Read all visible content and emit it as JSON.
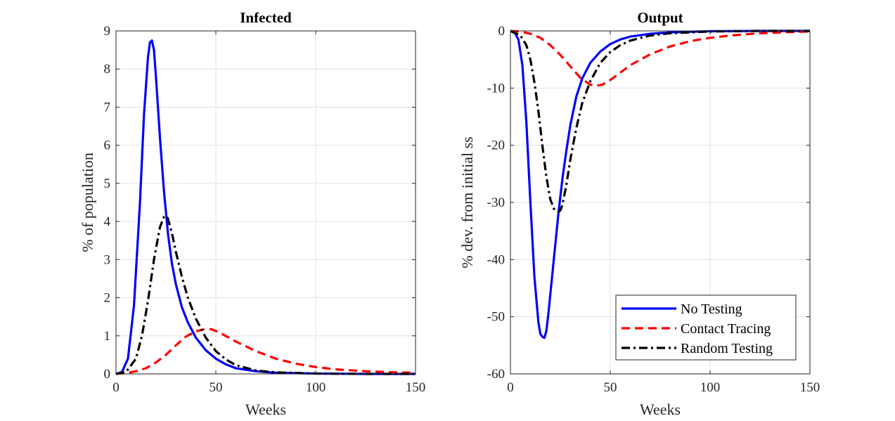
{
  "chart_data": [
    {
      "type": "line",
      "title": "Infected",
      "xlabel": "Weeks",
      "ylabel": "% of population",
      "xlim": [
        0,
        150
      ],
      "ylim": [
        0,
        9
      ],
      "xticks": [
        0,
        50,
        100,
        150
      ],
      "yticks": [
        0,
        1,
        2,
        3,
        4,
        5,
        6,
        7,
        8,
        9
      ],
      "grid": true,
      "series": [
        {
          "name": "No Testing",
          "color": "#0000ff",
          "style": "solid",
          "x": [
            0,
            3,
            6,
            9,
            12,
            14,
            16,
            17,
            18,
            19,
            20,
            22,
            24,
            26,
            28,
            30,
            33,
            36,
            40,
            45,
            50,
            55,
            60,
            70,
            80,
            100,
            125,
            150
          ],
          "y": [
            0,
            0.05,
            0.4,
            1.8,
            4.5,
            6.8,
            8.3,
            8.7,
            8.75,
            8.5,
            7.8,
            6.2,
            4.8,
            3.7,
            2.9,
            2.35,
            1.75,
            1.35,
            0.95,
            0.62,
            0.4,
            0.25,
            0.15,
            0.07,
            0.03,
            0.01,
            0,
            0
          ]
        },
        {
          "name": "Contact Tracing",
          "color": "#ff0000",
          "style": "dashed",
          "x": [
            0,
            5,
            10,
            15,
            20,
            25,
            30,
            35,
            40,
            45,
            48,
            52,
            60,
            70,
            80,
            90,
            100,
            110,
            125,
            140,
            150
          ],
          "y": [
            0,
            0.02,
            0.07,
            0.15,
            0.3,
            0.5,
            0.75,
            0.98,
            1.12,
            1.18,
            1.17,
            1.08,
            0.85,
            0.6,
            0.4,
            0.27,
            0.18,
            0.12,
            0.07,
            0.04,
            0.03
          ]
        },
        {
          "name": "Random Testing",
          "color": "#000000",
          "style": "dashdot",
          "x": [
            0,
            5,
            10,
            13,
            16,
            19,
            22,
            24,
            25,
            26,
            28,
            30,
            33,
            36,
            40,
            45,
            50,
            55,
            60,
            70,
            80,
            100,
            125,
            150
          ],
          "y": [
            0,
            0.05,
            0.4,
            1.0,
            1.9,
            3.0,
            3.85,
            4.12,
            4.15,
            4.08,
            3.7,
            3.2,
            2.55,
            2.0,
            1.45,
            0.95,
            0.6,
            0.38,
            0.23,
            0.09,
            0.04,
            0.01,
            0,
            0
          ]
        }
      ]
    },
    {
      "type": "line",
      "title": "Output",
      "xlabel": "Weeks",
      "ylabel": "% dev. from initial ss",
      "xlim": [
        0,
        150
      ],
      "ylim": [
        -60,
        0
      ],
      "xticks": [
        0,
        50,
        100,
        150
      ],
      "yticks": [
        0,
        -10,
        -20,
        -30,
        -40,
        -50,
        -60
      ],
      "grid": true,
      "legend": {
        "placement": "bottom-right",
        "entries": [
          "No Testing",
          "Contact Tracing",
          "Random Testing"
        ]
      },
      "series": [
        {
          "name": "No Testing",
          "color": "#0000ff",
          "style": "solid",
          "x": [
            0,
            2,
            4,
            6,
            8,
            10,
            12,
            14,
            15,
            16,
            17,
            18,
            19,
            20,
            22,
            24,
            26,
            28,
            30,
            33,
            36,
            40,
            45,
            50,
            55,
            60,
            70,
            80,
            100,
            125,
            150
          ],
          "y": [
            0,
            -0.2,
            -1.5,
            -6,
            -16,
            -30,
            -43,
            -51,
            -53,
            -53.5,
            -53.7,
            -52.5,
            -49.5,
            -46,
            -39,
            -32,
            -26,
            -21,
            -16.5,
            -11.5,
            -8.3,
            -5.6,
            -3.6,
            -2.3,
            -1.5,
            -1,
            -0.5,
            -0.25,
            -0.05,
            0,
            0
          ]
        },
        {
          "name": "Contact Tracing",
          "color": "#ff0000",
          "style": "dashed",
          "x": [
            0,
            5,
            10,
            15,
            20,
            25,
            30,
            35,
            40,
            43,
            46,
            50,
            55,
            60,
            70,
            80,
            90,
            100,
            110,
            125,
            140,
            150
          ],
          "y": [
            0,
            -0.1,
            -0.5,
            -1.2,
            -2.5,
            -4.2,
            -6.2,
            -8.2,
            -9.4,
            -9.6,
            -9.4,
            -8.6,
            -7.3,
            -6,
            -4.1,
            -2.7,
            -1.8,
            -1.2,
            -0.8,
            -0.4,
            -0.2,
            -0.1
          ]
        },
        {
          "name": "Random Testing",
          "color": "#000000",
          "style": "dashdot",
          "x": [
            0,
            5,
            8,
            10,
            12,
            14,
            16,
            18,
            20,
            22,
            24,
            25,
            26,
            28,
            30,
            33,
            36,
            40,
            45,
            50,
            55,
            60,
            70,
            80,
            100,
            125,
            150
          ],
          "y": [
            0,
            -0.8,
            -2.5,
            -5,
            -9,
            -14,
            -20,
            -25.5,
            -29.5,
            -31.3,
            -31.6,
            -31.4,
            -30.5,
            -27,
            -22.5,
            -17,
            -12.6,
            -8.8,
            -5.6,
            -3.7,
            -2.5,
            -1.7,
            -0.8,
            -0.4,
            -0.1,
            0,
            0
          ]
        }
      ]
    }
  ]
}
